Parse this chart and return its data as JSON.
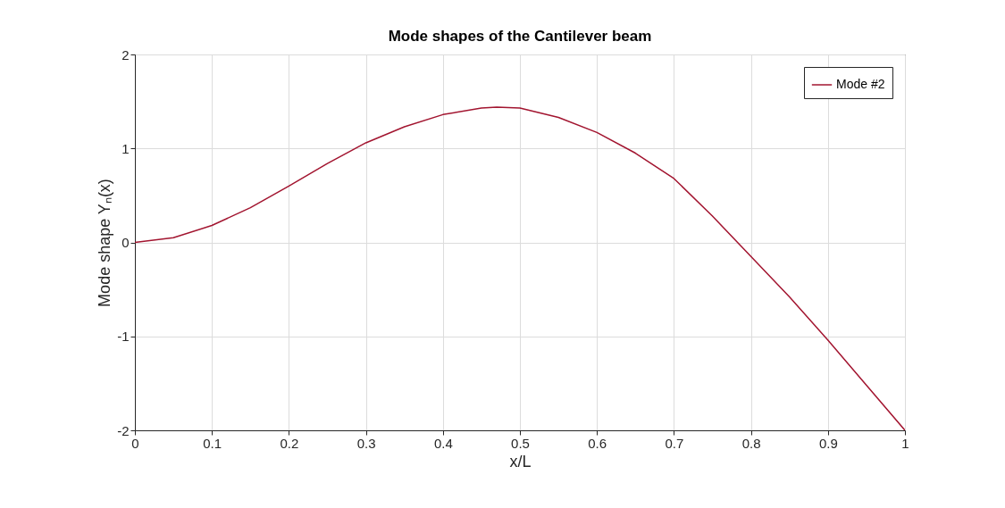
{
  "chart_data": {
    "type": "line",
    "title": "Mode shapes of the Cantilever beam",
    "xlabel": "x/L",
    "ylabel": "Mode shape Yₙ(x)",
    "x": [
      0,
      0.05,
      0.1,
      0.15,
      0.2,
      0.25,
      0.3,
      0.35,
      0.4,
      0.45,
      0.47,
      0.5,
      0.55,
      0.6,
      0.65,
      0.7,
      0.75,
      0.8,
      0.85,
      0.9,
      0.95,
      1
    ],
    "series": [
      {
        "name": "Mode #2",
        "color": "#a2142f",
        "values": [
          0,
          0.05,
          0.18,
          0.37,
          0.6,
          0.84,
          1.06,
          1.23,
          1.36,
          1.43,
          1.44,
          1.43,
          1.33,
          1.17,
          0.95,
          0.68,
          0.28,
          -0.15,
          -0.58,
          -1.04,
          -1.52,
          -2
        ]
      }
    ],
    "xlim": [
      0,
      1
    ],
    "xticks": [
      0,
      0.1,
      0.2,
      0.3,
      0.4,
      0.5,
      0.6,
      0.7,
      0.8,
      0.9,
      1
    ],
    "ylim": [
      -2,
      2
    ],
    "yticks": [
      -2,
      -1,
      0,
      1,
      2
    ],
    "grid": true,
    "legend": "top right",
    "marker": "none",
    "line_style": "solid"
  }
}
